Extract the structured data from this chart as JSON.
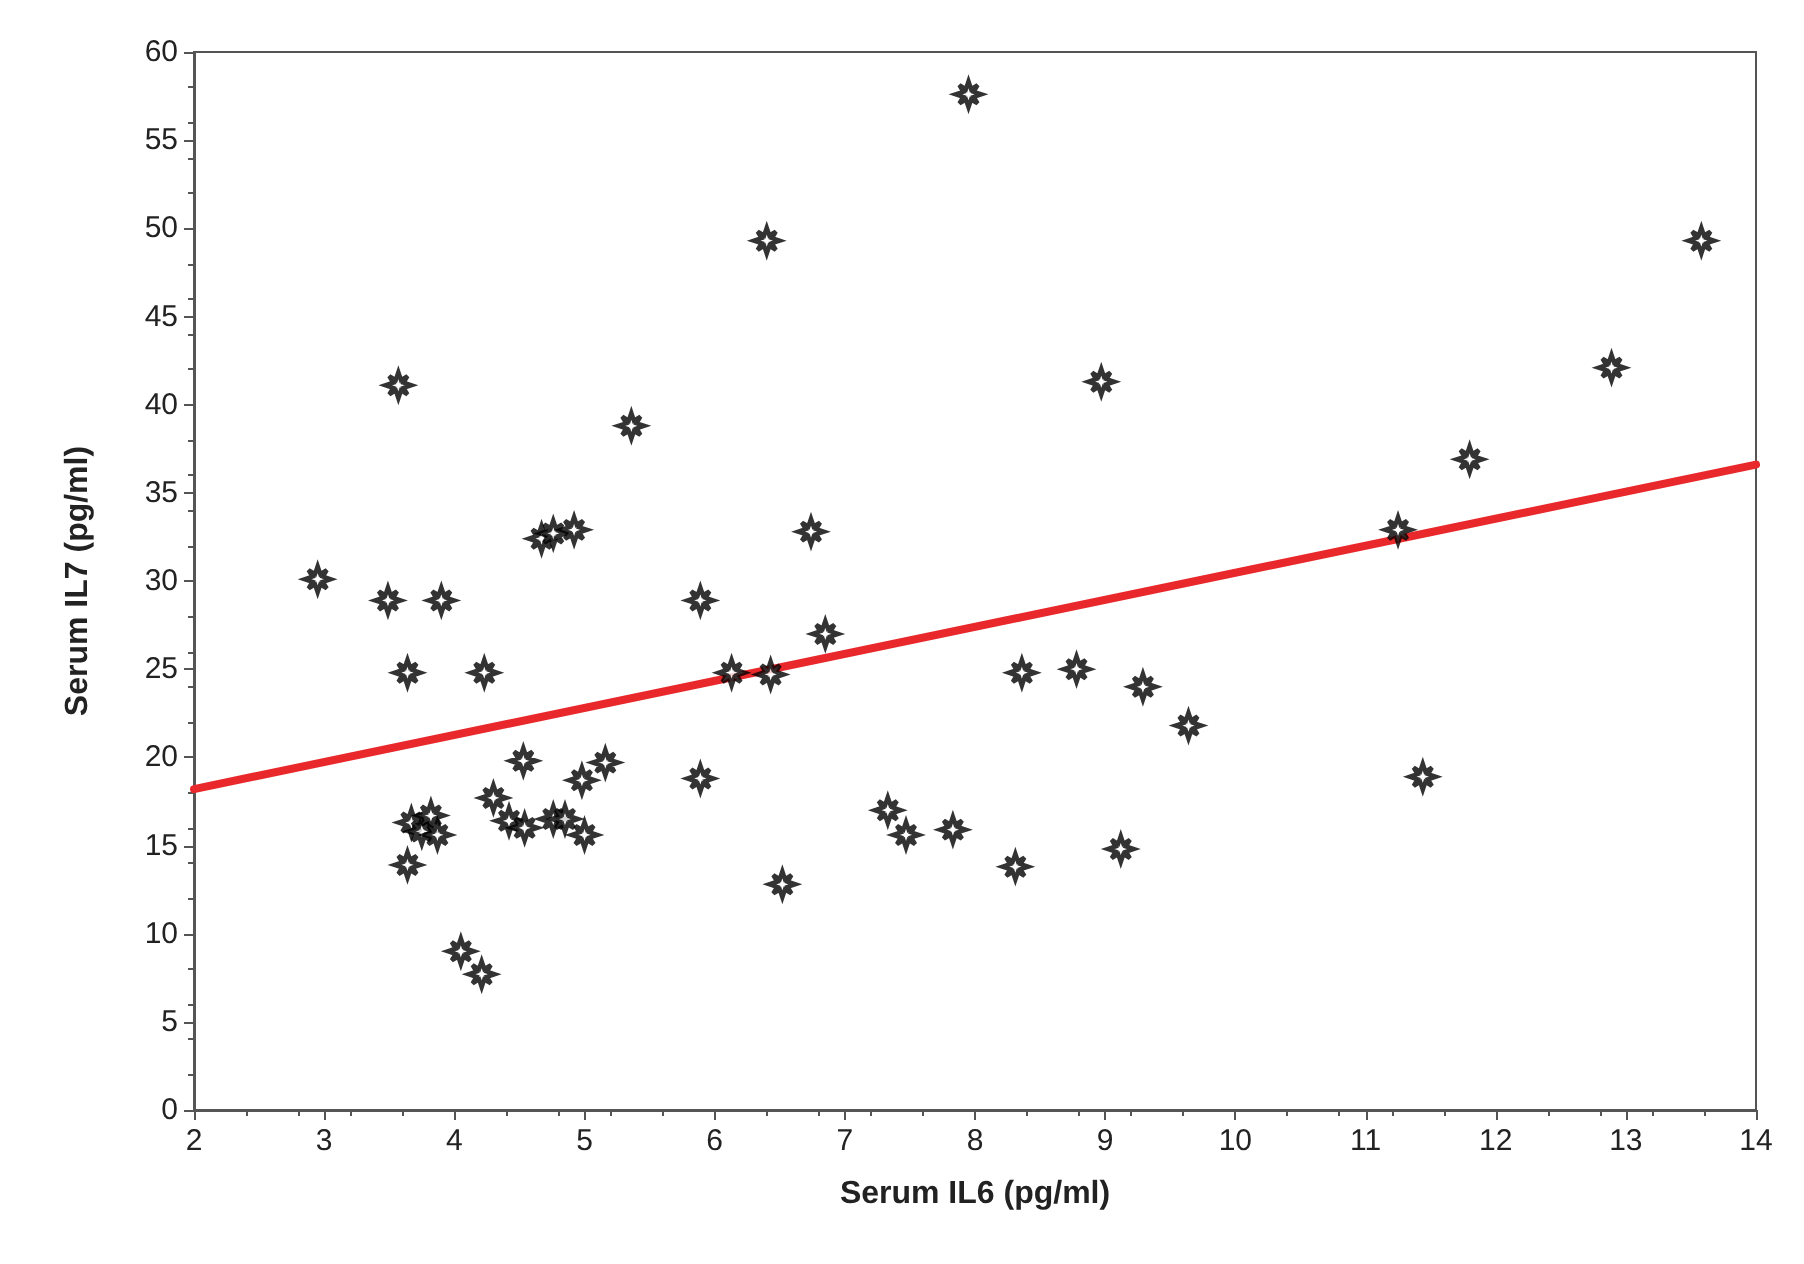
{
  "chart_data": {
    "type": "scatter",
    "xlabel": "Serum IL6 (pg/ml)",
    "ylabel": "Serum IL7 (pg/ml)",
    "xlim": [
      2,
      14
    ],
    "xticks": [
      2,
      3,
      4,
      5,
      6,
      7,
      8,
      9,
      10,
      11,
      12,
      13,
      14
    ],
    "ylim": [
      0,
      60
    ],
    "yticks": [
      0,
      5,
      10,
      15,
      20,
      25,
      30,
      35,
      40,
      45,
      50,
      55,
      60
    ],
    "grid": false,
    "marker": "star",
    "series": [
      {
        "color": "#000000",
        "x": [
          2.95,
          3.49,
          3.57,
          3.64,
          3.64,
          3.9,
          4.23,
          4.05,
          4.21,
          3.67,
          3.75,
          3.82,
          3.87,
          4.3,
          4.42,
          4.53,
          4.54,
          4.67,
          4.76,
          4.92,
          4.76,
          4.85,
          4.98,
          5.0,
          5.16,
          5.36,
          5.89,
          5.89,
          6.13,
          6.4,
          6.43,
          6.52,
          6.74,
          6.85,
          7.33,
          7.47,
          7.83,
          7.95,
          8.31,
          8.36,
          8.78,
          8.97,
          9.12,
          9.29,
          9.64,
          11.25,
          11.44,
          11.8,
          12.89,
          13.58
        ],
        "values": [
          30.1,
          28.9,
          41.1,
          24.8,
          13.9,
          28.9,
          24.8,
          9.0,
          7.7,
          16.3,
          15.8,
          16.7,
          15.6,
          17.7,
          16.4,
          19.8,
          16.0,
          32.4,
          32.7,
          32.9,
          16.5,
          16.5,
          18.7,
          15.6,
          19.7,
          38.8,
          28.9,
          18.8,
          24.8,
          49.3,
          24.7,
          12.8,
          32.8,
          27.0,
          17.0,
          15.6,
          15.9,
          57.6,
          13.8,
          24.8,
          25.0,
          41.3,
          14.8,
          24.0,
          21.8,
          32.9,
          18.9,
          36.9,
          42.1,
          49.3
        ]
      },
      {
        "type": "line",
        "color": "#e8282b",
        "marker": "none",
        "x": [
          2,
          14
        ],
        "values": [
          18.2,
          36.6
        ]
      }
    ]
  }
}
